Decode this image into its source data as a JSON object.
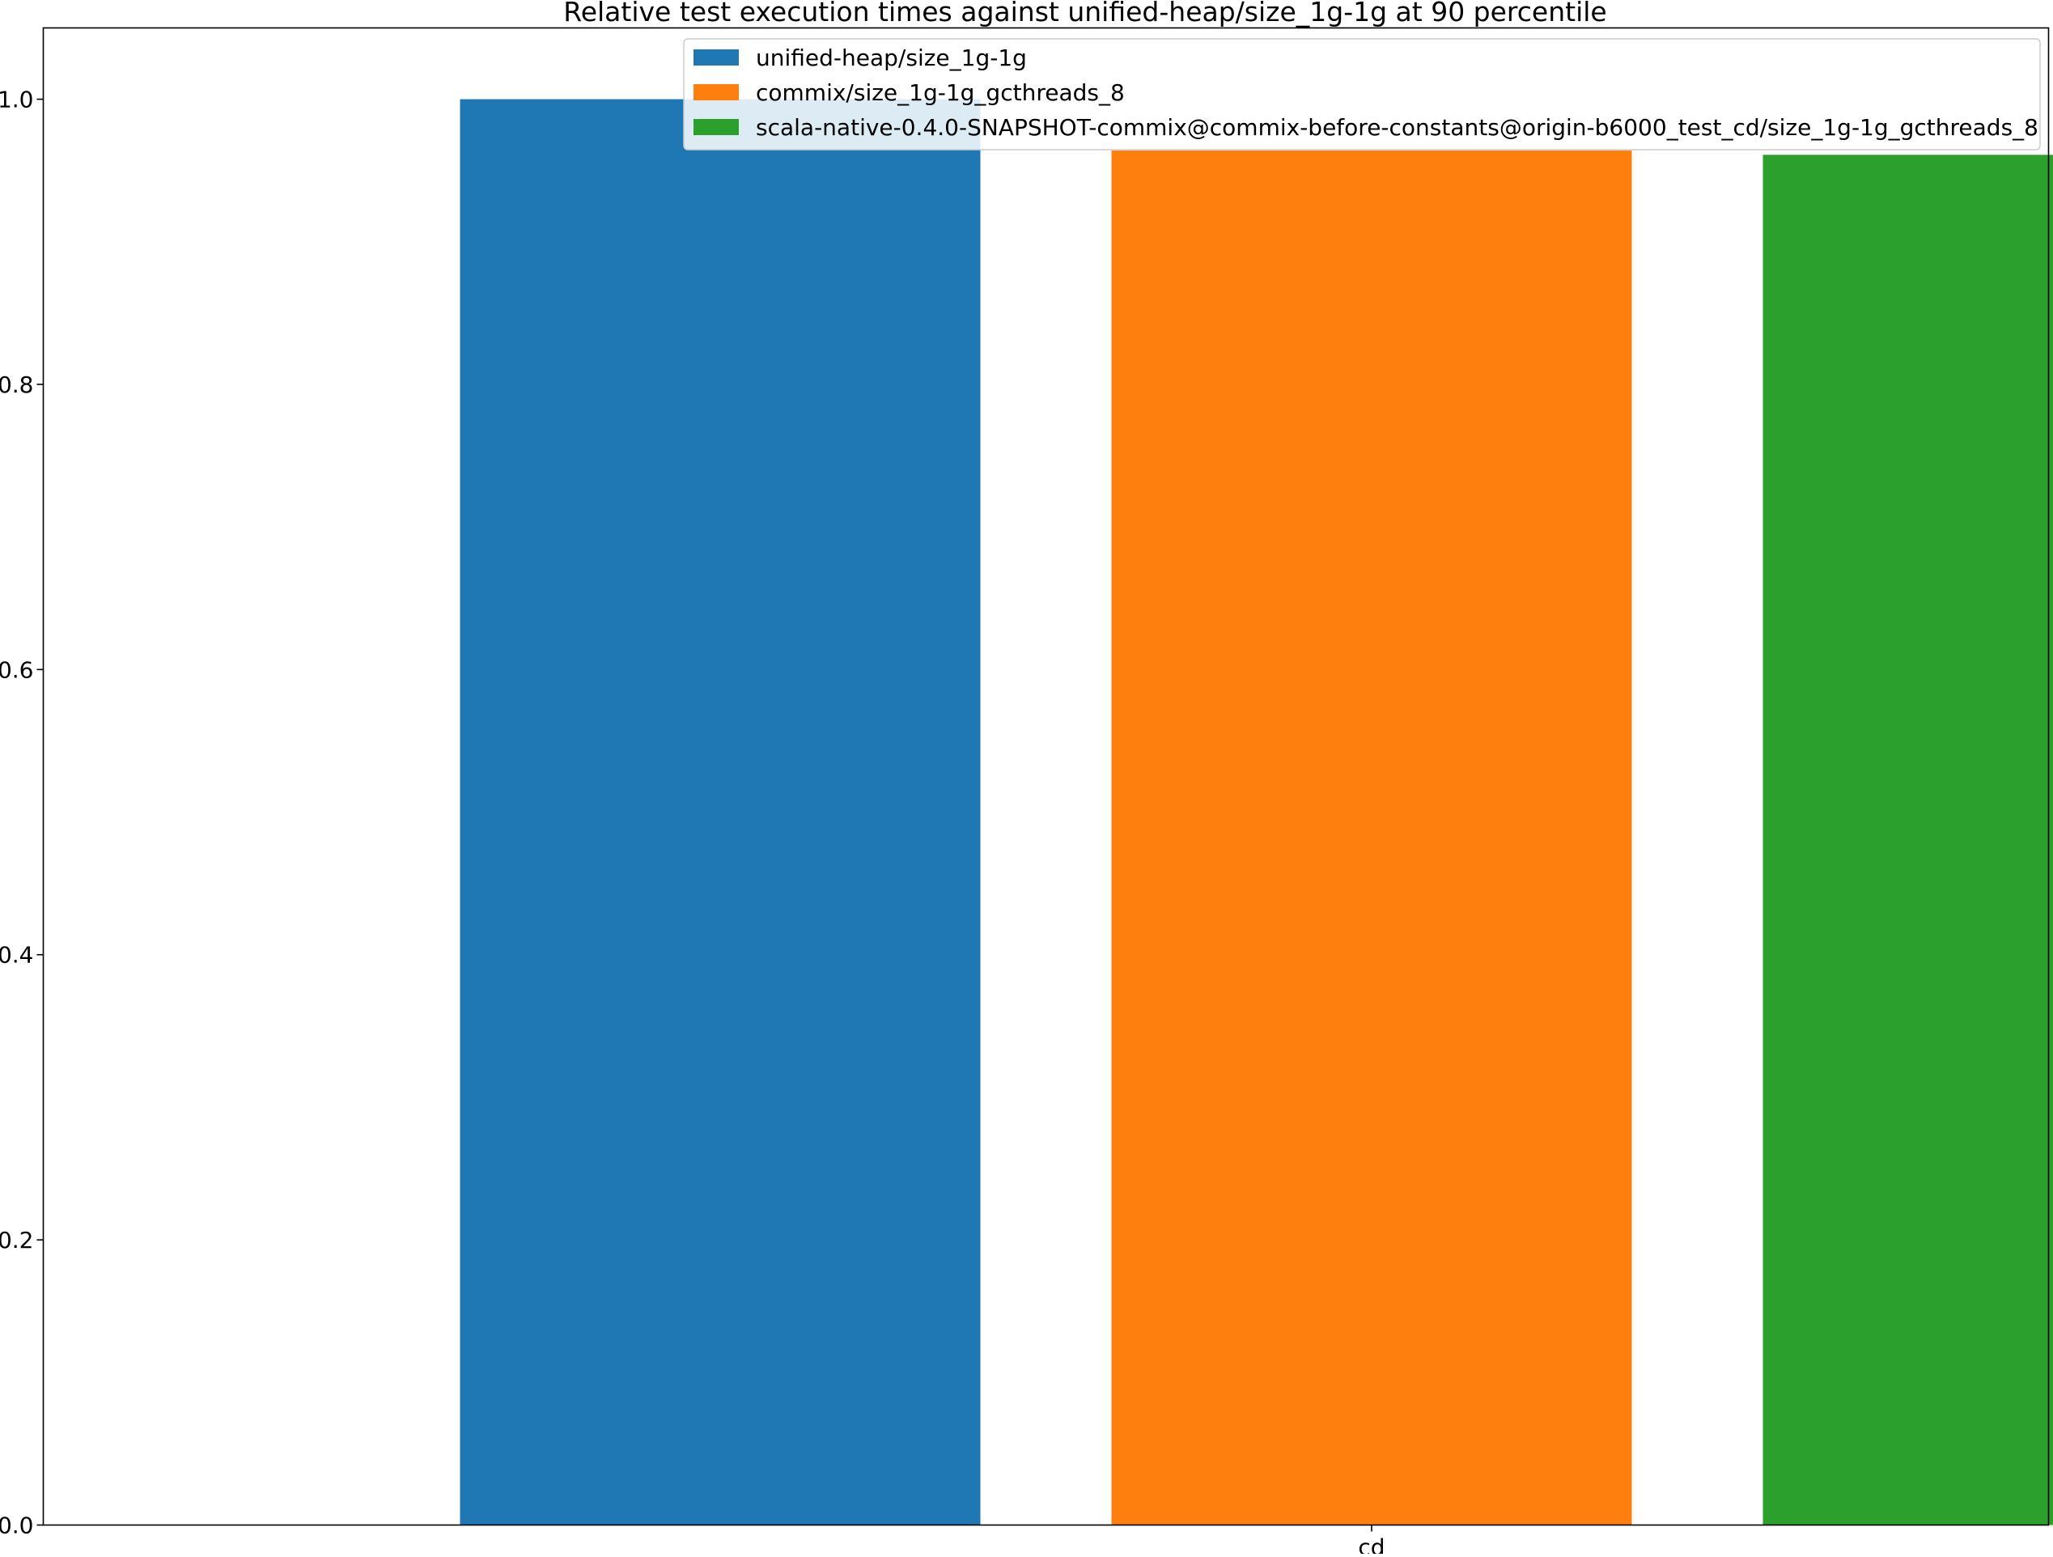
{
  "chart_data": {
    "type": "bar",
    "title": "Relative test execution times against unified-heap/size_1g-1g at 90 percentile",
    "xlabel": "",
    "ylabel": "",
    "categories": [
      "cd"
    ],
    "ylim": [
      0,
      1.05
    ],
    "yticks": [
      {
        "value": 0.0,
        "label": "0.0"
      },
      {
        "value": 0.2,
        "label": "0.2"
      },
      {
        "value": 0.4,
        "label": "0.4"
      },
      {
        "value": 0.6,
        "label": "0.6"
      },
      {
        "value": 0.8,
        "label": "0.8"
      },
      {
        "value": 1.0,
        "label": "1.0"
      }
    ],
    "grid": false,
    "legend_position": "upper-right",
    "series": [
      {
        "name": "unified-heap/size_1g-1g",
        "color": "#1f77b4",
        "values": [
          1.0
        ]
      },
      {
        "name": "commix/size_1g-1g_gcthreads_8",
        "color": "#ff7f0e",
        "values": [
          0.964
        ]
      },
      {
        "name": "scala-native-0.4.0-SNAPSHOT-commix@commix-before-constants@origin-b6000_test_cd/size_1g-1g_gcthreads_8",
        "color": "#2ca02c",
        "values": [
          0.961
        ]
      }
    ]
  }
}
